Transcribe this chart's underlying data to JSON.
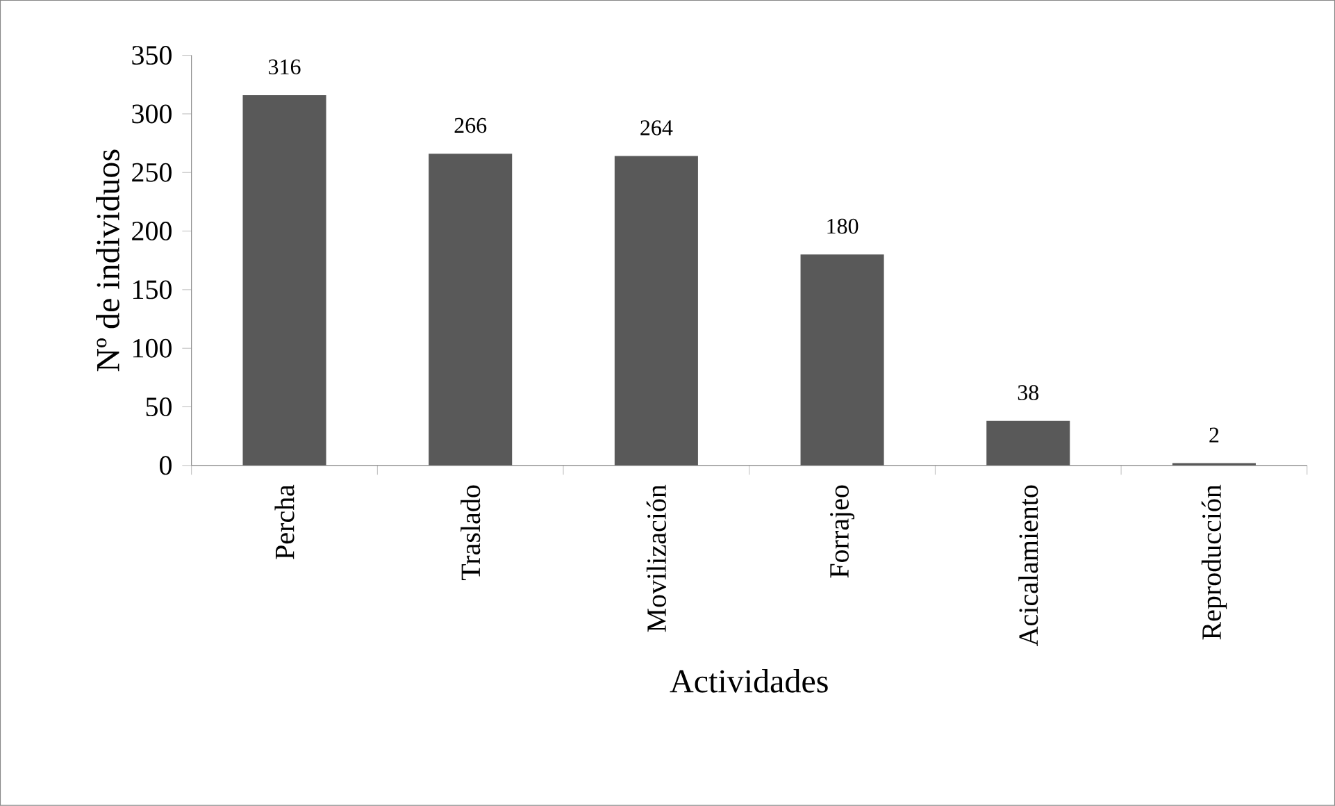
{
  "chart_data": {
    "type": "bar",
    "xlabel": "Actividades",
    "ylabel": "Nº de individuos",
    "categories": [
      "Percha",
      "Traslado",
      "Movilización",
      "Forrajeo",
      "Acicalamiento",
      "Reproducción"
    ],
    "values": [
      316,
      266,
      264,
      180,
      38,
      2
    ],
    "color": "#595959",
    "ylim": [
      0,
      350
    ],
    "yticks": [
      0,
      50,
      100,
      150,
      200,
      250,
      300,
      350
    ],
    "data_labels": true,
    "grid": false
  }
}
